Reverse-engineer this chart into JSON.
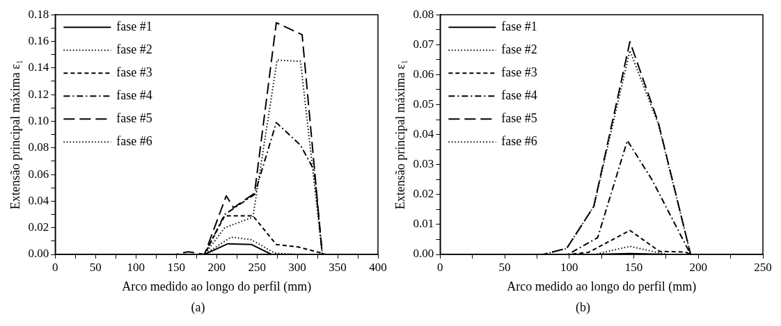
{
  "chart_data": [
    {
      "type": "line",
      "xlabel": "Arco medido ao longo do perfil (mm)",
      "ylabel": "Extensão principal máxima ε₁",
      "annotations": [
        "(a)"
      ],
      "legend": "top left",
      "grid": false,
      "marker": "none",
      "xlim": [
        0,
        400
      ],
      "ylim": [
        0,
        0.18
      ],
      "xticks": [
        0,
        {
          "value": 25,
          "label": null
        },
        50,
        {
          "value": 75,
          "label": null
        },
        100,
        {
          "value": 125,
          "label": null
        },
        150,
        {
          "value": 175,
          "label": null
        },
        200,
        {
          "value": 225,
          "label": null
        },
        250,
        {
          "value": 275,
          "label": null
        },
        300,
        {
          "value": 325,
          "label": null
        },
        350,
        {
          "value": 375,
          "label": null
        },
        400
      ],
      "yticks": [
        {
          "value": 0,
          "label": "0.00"
        },
        {
          "value": 0.01,
          "label": null
        },
        {
          "value": 0.02,
          "label": "0.02"
        },
        {
          "value": 0.03,
          "label": null
        },
        {
          "value": 0.04,
          "label": "0.04"
        },
        {
          "value": 0.05,
          "label": null
        },
        {
          "value": 0.06,
          "label": "0.06"
        },
        {
          "value": 0.07,
          "label": null
        },
        {
          "value": 0.08,
          "label": "0.08"
        },
        {
          "value": 0.09,
          "label": null
        },
        {
          "value": 0.1,
          "label": "0.10"
        },
        {
          "value": 0.11,
          "label": null
        },
        {
          "value": 0.12,
          "label": "0.12"
        },
        {
          "value": 0.13,
          "label": null
        },
        {
          "value": 0.14,
          "label": "0.14"
        },
        {
          "value": 0.15,
          "label": null
        },
        {
          "value": 0.16,
          "label": "0.16"
        },
        {
          "value": 0.17,
          "label": null
        },
        {
          "value": 0.18,
          "label": "0.18"
        }
      ],
      "series": [
        {
          "name": "fase #1",
          "color": "#000000",
          "line_style": "solid",
          "x": [
            0,
            185,
            214,
            243,
            268,
            300,
            368
          ],
          "values": [
            0,
            0,
            0.008,
            0.0075,
            0,
            0,
            0
          ]
        },
        {
          "name": "fase #2",
          "color": "#000000",
          "line_style": "dotted",
          "x": [
            0,
            185,
            218,
            243,
            272,
            300,
            368
          ],
          "values": [
            0,
            0,
            0.013,
            0.011,
            0.001,
            0,
            0
          ]
        },
        {
          "name": "fase #3",
          "color": "#000000",
          "line_style": "dashed",
          "x": [
            0,
            185,
            210,
            245,
            274,
            301,
            330,
            335,
            368
          ],
          "values": [
            0,
            0,
            0.029,
            0.029,
            0.0074,
            0.0056,
            0.001,
            0,
            0
          ]
        },
        {
          "name": "fase #4",
          "color": "#000000",
          "line_style": "dashdot",
          "x": [
            0,
            185,
            210,
            247,
            274,
            304,
            321,
            331,
            368
          ],
          "values": [
            0,
            0,
            0.03,
            0.045,
            0.099,
            0.082,
            0.063,
            0,
            0
          ]
        },
        {
          "name": "fase #5",
          "color": "#000000",
          "line_style": "longdash",
          "x": [
            0,
            150,
            165,
            185,
            212,
            221,
            247,
            274,
            306,
            331,
            368
          ],
          "values": [
            0,
            0,
            0.002,
            0,
            0.044,
            0.035,
            0.046,
            0.174,
            0.165,
            0,
            0
          ]
        },
        {
          "name": "fase #6",
          "color": "#000000",
          "line_style": "dotted",
          "x": [
            0,
            185,
            210,
            245,
            275,
            304,
            331,
            368
          ],
          "values": [
            0,
            0,
            0.02,
            0.028,
            0.146,
            0.145,
            0,
            0
          ]
        }
      ]
    },
    {
      "type": "line",
      "xlabel": "Arco medido ao longo do perfil (mm)",
      "ylabel": "Extensão principal máxima ε₁",
      "annotations": [
        "(b)"
      ],
      "legend": "top left",
      "grid": false,
      "marker": "none",
      "xlim": [
        0,
        250
      ],
      "ylim": [
        0,
        0.08
      ],
      "xticks": [
        0,
        {
          "value": 25,
          "label": null
        },
        50,
        {
          "value": 75,
          "label": null
        },
        100,
        {
          "value": 125,
          "label": null
        },
        150,
        {
          "value": 175,
          "label": null
        },
        200,
        {
          "value": 225,
          "label": null
        },
        250
      ],
      "yticks": [
        {
          "value": 0,
          "label": "0.00"
        },
        {
          "value": 0.005,
          "label": null
        },
        {
          "value": 0.01,
          "label": "0.01"
        },
        {
          "value": 0.015,
          "label": null
        },
        {
          "value": 0.02,
          "label": "0.02"
        },
        {
          "value": 0.025,
          "label": null
        },
        {
          "value": 0.03,
          "label": "0.03"
        },
        {
          "value": 0.035,
          "label": null
        },
        {
          "value": 0.04,
          "label": "0.04"
        },
        {
          "value": 0.045,
          "label": null
        },
        {
          "value": 0.05,
          "label": "0.05"
        },
        {
          "value": 0.055,
          "label": null
        },
        {
          "value": 0.06,
          "label": "0.06"
        },
        {
          "value": 0.065,
          "label": null
        },
        {
          "value": 0.07,
          "label": "0.07"
        },
        {
          "value": 0.075,
          "label": null
        },
        {
          "value": 0.08,
          "label": "0.08"
        }
      ],
      "series": [
        {
          "name": "fase #1",
          "color": "#000000",
          "line_style": "solid",
          "x": [
            0,
            120,
            147,
            175,
            240
          ],
          "values": [
            0,
            0,
            0.0003,
            0,
            0
          ]
        },
        {
          "name": "fase #2",
          "color": "#000000",
          "line_style": "dotted",
          "x": [
            0,
            120,
            147,
            175,
            240
          ],
          "values": [
            0,
            0,
            0.0027,
            0,
            0
          ]
        },
        {
          "name": "fase #3",
          "color": "#000000",
          "line_style": "dashed",
          "x": [
            0,
            100,
            115,
            147,
            170,
            190,
            194,
            240
          ],
          "values": [
            0,
            0,
            0.0007,
            0.008,
            0.001,
            0.0008,
            0,
            0
          ]
        },
        {
          "name": "fase #4",
          "color": "#000000",
          "line_style": "dashdot",
          "x": [
            0,
            99,
            122,
            145,
            164,
            194,
            240
          ],
          "values": [
            0,
            0,
            0.0056,
            0.038,
            0.025,
            0,
            0
          ]
        },
        {
          "name": "fase #5",
          "color": "#000000",
          "line_style": "longdash",
          "x": [
            0,
            80,
            98,
            119,
            147,
            169,
            194,
            240
          ],
          "values": [
            0,
            0,
            0.002,
            0.016,
            0.071,
            0.044,
            0,
            0
          ]
        },
        {
          "name": "fase #6",
          "color": "#000000",
          "line_style": "dotted",
          "x": [
            0,
            80,
            98,
            119,
            147,
            169,
            194,
            240
          ],
          "values": [
            0,
            0,
            0.002,
            0.016,
            0.068,
            0.0435,
            0,
            0
          ]
        }
      ]
    }
  ]
}
